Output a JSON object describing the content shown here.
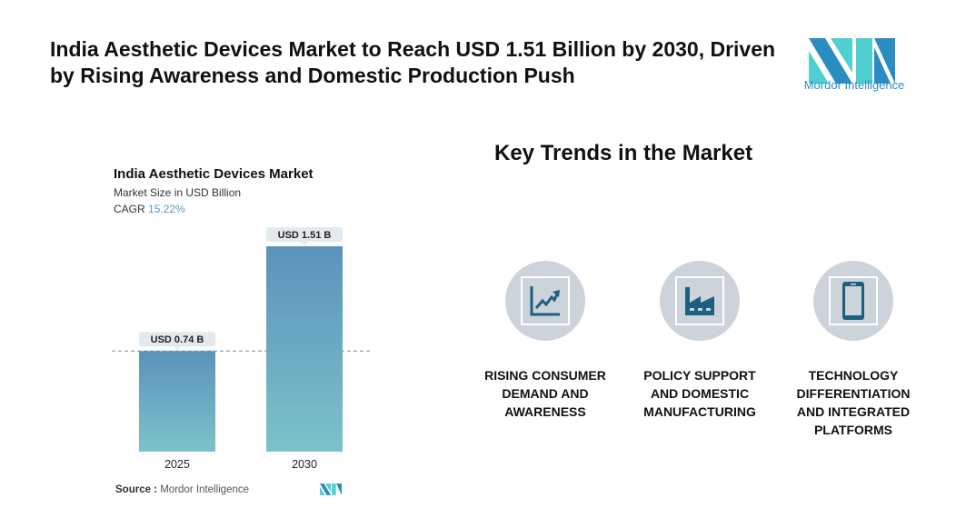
{
  "header": {
    "title": "India Aesthetic Devices Market to Reach USD 1.51 Billion by 2030, Driven by Rising Awareness and Domestic Production Push",
    "logo_text": "Mordor Intelligence"
  },
  "chart_data": {
    "type": "bar",
    "title": "India Aesthetic Devices Market",
    "subtitle": "Market Size in USD Billion",
    "cagr_label": "CAGR",
    "cagr_value": "15.22%",
    "categories": [
      "2025",
      "2030"
    ],
    "values": [
      0.74,
      1.51
    ],
    "data_labels": [
      "USD 0.74 B",
      "USD 1.51 B"
    ],
    "ylim": [
      0,
      1.51
    ],
    "grid": false,
    "reference_line": 0.74,
    "colors": {
      "bar_top": "#5b93bb",
      "bar_bottom": "#7cc2c9",
      "label_bg": "#e3eaee"
    }
  },
  "source": {
    "label": "Source :",
    "value": "Mordor Intelligence"
  },
  "trends": {
    "title": "Key Trends in the Market",
    "items": [
      {
        "icon": "chart-growth-icon",
        "label": "RISING CONSUMER DEMAND AND AWARENESS"
      },
      {
        "icon": "factory-icon",
        "label": "POLICY SUPPORT AND DOMESTIC MANUFACTURING"
      },
      {
        "icon": "smartphone-icon",
        "label": "TECHNOLOGY DIFFERENTIATION AND INTEGRATED PLATFORMS"
      }
    ]
  },
  "colors": {
    "icon": "#1d5f80",
    "circle": "#ccd3da",
    "accent": "#2a8cc0"
  }
}
